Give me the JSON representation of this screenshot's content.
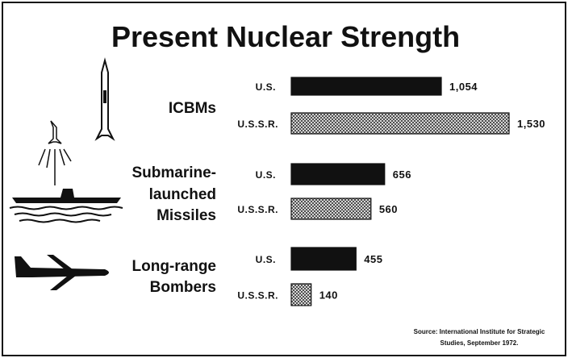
{
  "chart_data": {
    "type": "bar",
    "orientation": "horizontal",
    "title": "Present Nuclear Strength",
    "categories": [
      "ICBMs",
      "Submarine-launched Missiles",
      "Long-range Bombers"
    ],
    "category_lines": [
      [
        "ICBMs"
      ],
      [
        "Submarine-",
        "launched",
        "Missiles"
      ],
      [
        "Long-range",
        "Bombers"
      ]
    ],
    "series": [
      {
        "name": "U.S.",
        "values": [
          1054,
          656,
          455
        ],
        "labels": [
          "1,054",
          "656",
          "455"
        ],
        "fill": "#111111"
      },
      {
        "name": "U.S.S.R.",
        "values": [
          1530,
          560,
          140
        ],
        "labels": [
          "1,530",
          "560",
          "140"
        ],
        "fill": "crosshatch"
      }
    ],
    "xlim": [
      0,
      1530
    ],
    "grid": false,
    "source": [
      "Source: International Institute for Strategic",
      "Studies, September 1972."
    ]
  }
}
